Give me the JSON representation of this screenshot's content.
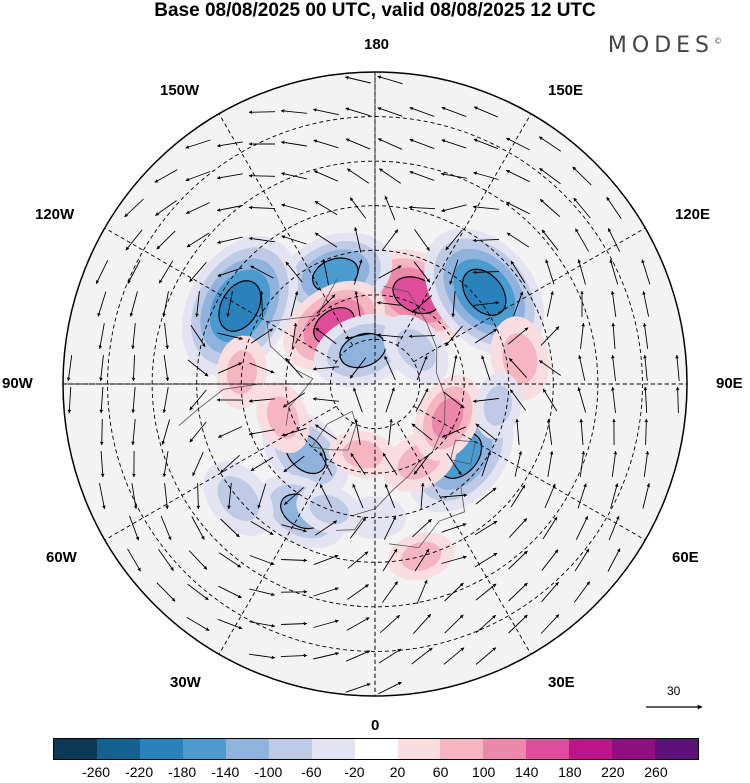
{
  "title": "Base 08/08/2025 00 UTC, valid 08/08/2025 12 UTC",
  "brand": "MODES",
  "brand_mark": "©",
  "longitudes": {
    "top": "180",
    "bottom": "0",
    "left": "90W",
    "right": "90E",
    "w150": "150W",
    "e150": "150E",
    "w120": "120W",
    "e120": "120E",
    "w60": "60W",
    "e60": "60E",
    "w30": "30W",
    "e30": "30E"
  },
  "reference_vector": {
    "value": "30"
  },
  "colorbar": {
    "colors": [
      "#0b3954",
      "#12618f",
      "#2a82bd",
      "#4c9bd0",
      "#8fb3dc",
      "#bfcbe6",
      "#e4e3f1",
      "#ffffff",
      "#f9dde0",
      "#f5b5c1",
      "#ee88ab",
      "#e04c9c",
      "#bd1487",
      "#8f0f80",
      "#5c1276"
    ],
    "ticks": [
      "-260",
      "-220",
      "-180",
      "-140",
      "-100",
      "-60",
      "-20",
      "20",
      "60",
      "100",
      "140",
      "180",
      "220",
      "260"
    ]
  },
  "anomalies": [
    {
      "lon": 180,
      "colat": 20,
      "value": 150
    },
    {
      "lon": 155,
      "colat": 22,
      "value": 160
    },
    {
      "lon": -160,
      "colat": 26,
      "value": -150
    },
    {
      "lon": 130,
      "colat": 32,
      "value": -200
    },
    {
      "lon": -120,
      "colat": 35,
      "value": -210
    },
    {
      "lon": -145,
      "colat": 16,
      "value": 140
    },
    {
      "lon": -160,
      "colat": 8,
      "value": -120
    },
    {
      "lon": 50,
      "colat": 25,
      "value": -170
    },
    {
      "lon": 30,
      "colat": 20,
      "value": 80
    },
    {
      "lon": 65,
      "colat": 18,
      "value": 100
    },
    {
      "lon": 100,
      "colat": 33,
      "value": 90
    },
    {
      "lon": 130,
      "colat": 12,
      "value": -80
    },
    {
      "lon": -45,
      "colat": 22,
      "value": -120
    },
    {
      "lon": -70,
      "colat": 22,
      "value": 70
    },
    {
      "lon": -30,
      "colat": 33,
      "value": -110
    },
    {
      "lon": -50,
      "colat": 40,
      "value": -90
    },
    {
      "lon": -95,
      "colat": 30,
      "value": 70
    },
    {
      "lon": 80,
      "colat": 28,
      "value": -60
    },
    {
      "lon": 0,
      "colat": 30,
      "value": -50
    },
    {
      "lon": 15,
      "colat": 40,
      "value": 60
    },
    {
      "lon": -10,
      "colat": 16,
      "value": 60
    },
    {
      "lon": -20,
      "colat": 30,
      "value": -60
    }
  ]
}
